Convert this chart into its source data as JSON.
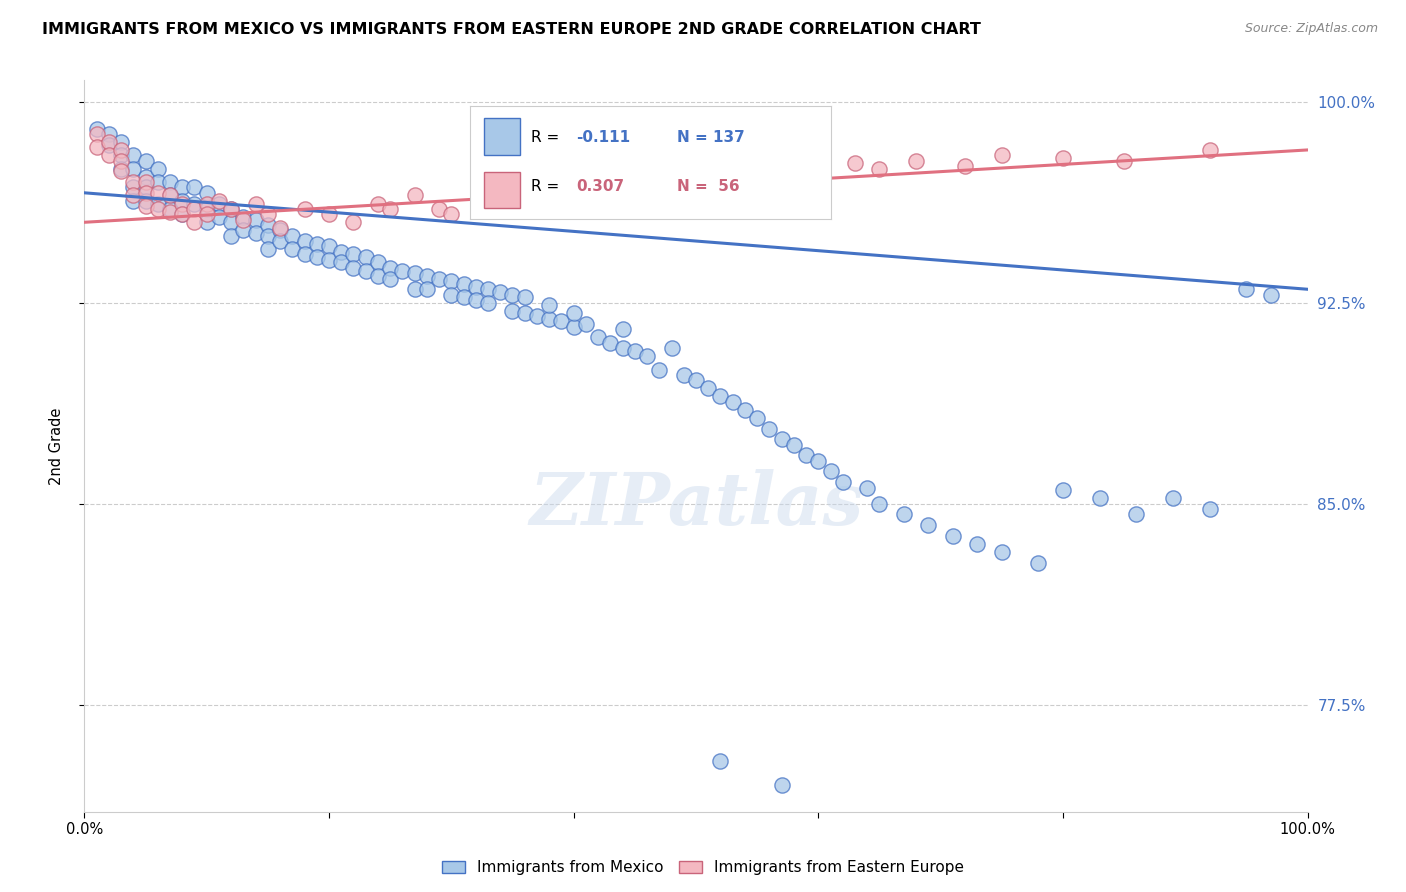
{
  "title": "IMMIGRANTS FROM MEXICO VS IMMIGRANTS FROM EASTERN EUROPE 2ND GRADE CORRELATION CHART",
  "source": "Source: ZipAtlas.com",
  "ylabel": "2nd Grade",
  "xlim": [
    0.0,
    1.0
  ],
  "ylim": [
    0.735,
    1.008
  ],
  "color_blue": "#a8c8e8",
  "color_blue_edge": "#4472c4",
  "color_pink": "#f4b8c1",
  "color_pink_edge": "#c9647a",
  "color_blue_line": "#4472c4",
  "color_pink_line": "#e07080",
  "ytick_positions": [
    0.775,
    0.85,
    0.925,
    1.0
  ],
  "ytick_labels": [
    "77.5%",
    "85.0%",
    "92.5%",
    "100.0%"
  ],
  "blue_trend_x": [
    0.0,
    1.0
  ],
  "blue_trend_y": [
    0.966,
    0.93
  ],
  "pink_trend_x": [
    0.0,
    1.0
  ],
  "pink_trend_y": [
    0.955,
    0.982
  ],
  "mexico_x": [
    0.01,
    0.02,
    0.02,
    0.03,
    0.03,
    0.03,
    0.04,
    0.04,
    0.04,
    0.04,
    0.05,
    0.05,
    0.05,
    0.05,
    0.06,
    0.06,
    0.06,
    0.07,
    0.07,
    0.07,
    0.08,
    0.08,
    0.08,
    0.09,
    0.09,
    0.1,
    0.1,
    0.1,
    0.11,
    0.11,
    0.12,
    0.12,
    0.12,
    0.13,
    0.13,
    0.14,
    0.14,
    0.15,
    0.15,
    0.15,
    0.16,
    0.16,
    0.17,
    0.17,
    0.18,
    0.18,
    0.19,
    0.19,
    0.2,
    0.2,
    0.21,
    0.21,
    0.22,
    0.22,
    0.23,
    0.23,
    0.24,
    0.24,
    0.25,
    0.25,
    0.26,
    0.27,
    0.27,
    0.28,
    0.28,
    0.29,
    0.3,
    0.3,
    0.31,
    0.31,
    0.32,
    0.32,
    0.33,
    0.33,
    0.34,
    0.35,
    0.35,
    0.36,
    0.36,
    0.37,
    0.38,
    0.38,
    0.39,
    0.4,
    0.4,
    0.41,
    0.42,
    0.43,
    0.44,
    0.44,
    0.45,
    0.46,
    0.47,
    0.48,
    0.49,
    0.5,
    0.51,
    0.52,
    0.53,
    0.54,
    0.55,
    0.56,
    0.57,
    0.58,
    0.59,
    0.6,
    0.61,
    0.62,
    0.64,
    0.65,
    0.67,
    0.69,
    0.71,
    0.73,
    0.75,
    0.78,
    0.8,
    0.83,
    0.86,
    0.89,
    0.92,
    0.95,
    0.97,
    0.52,
    0.57
  ],
  "mexico_y": [
    0.99,
    0.988,
    0.984,
    0.985,
    0.98,
    0.975,
    0.98,
    0.975,
    0.968,
    0.963,
    0.978,
    0.972,
    0.968,
    0.963,
    0.975,
    0.97,
    0.962,
    0.97,
    0.965,
    0.96,
    0.968,
    0.963,
    0.958,
    0.968,
    0.962,
    0.966,
    0.96,
    0.955,
    0.962,
    0.957,
    0.96,
    0.955,
    0.95,
    0.957,
    0.952,
    0.956,
    0.951,
    0.954,
    0.95,
    0.945,
    0.952,
    0.948,
    0.95,
    0.945,
    0.948,
    0.943,
    0.947,
    0.942,
    0.946,
    0.941,
    0.944,
    0.94,
    0.943,
    0.938,
    0.942,
    0.937,
    0.94,
    0.935,
    0.938,
    0.934,
    0.937,
    0.936,
    0.93,
    0.935,
    0.93,
    0.934,
    0.933,
    0.928,
    0.932,
    0.927,
    0.931,
    0.926,
    0.93,
    0.925,
    0.929,
    0.928,
    0.922,
    0.927,
    0.921,
    0.92,
    0.919,
    0.924,
    0.918,
    0.916,
    0.921,
    0.917,
    0.912,
    0.91,
    0.915,
    0.908,
    0.907,
    0.905,
    0.9,
    0.908,
    0.898,
    0.896,
    0.893,
    0.89,
    0.888,
    0.885,
    0.882,
    0.878,
    0.874,
    0.872,
    0.868,
    0.866,
    0.862,
    0.858,
    0.856,
    0.85,
    0.846,
    0.842,
    0.838,
    0.835,
    0.832,
    0.828,
    0.855,
    0.852,
    0.846,
    0.852,
    0.848,
    0.93,
    0.928,
    0.754,
    0.745
  ],
  "eastern_x": [
    0.01,
    0.01,
    0.02,
    0.02,
    0.03,
    0.03,
    0.03,
    0.04,
    0.04,
    0.05,
    0.05,
    0.05,
    0.06,
    0.06,
    0.07,
    0.07,
    0.08,
    0.08,
    0.09,
    0.09,
    0.1,
    0.1,
    0.11,
    0.12,
    0.13,
    0.14,
    0.15,
    0.16,
    0.18,
    0.2,
    0.22,
    0.24,
    0.25,
    0.27,
    0.29,
    0.3,
    0.33,
    0.35,
    0.37,
    0.4,
    0.43,
    0.45,
    0.47,
    0.5,
    0.52,
    0.55,
    0.58,
    0.6,
    0.63,
    0.65,
    0.68,
    0.72,
    0.75,
    0.8,
    0.85,
    0.92
  ],
  "eastern_y": [
    0.988,
    0.983,
    0.985,
    0.98,
    0.982,
    0.978,
    0.974,
    0.97,
    0.965,
    0.97,
    0.966,
    0.961,
    0.966,
    0.96,
    0.965,
    0.959,
    0.962,
    0.958,
    0.96,
    0.955,
    0.962,
    0.958,
    0.963,
    0.96,
    0.956,
    0.962,
    0.958,
    0.953,
    0.96,
    0.958,
    0.955,
    0.962,
    0.96,
    0.965,
    0.96,
    0.958,
    0.963,
    0.967,
    0.966,
    0.97,
    0.968,
    0.972,
    0.97,
    0.975,
    0.972,
    0.975,
    0.976,
    0.973,
    0.977,
    0.975,
    0.978,
    0.976,
    0.98,
    0.979,
    0.978,
    0.982
  ],
  "watermark_text": "ZIPatlas"
}
